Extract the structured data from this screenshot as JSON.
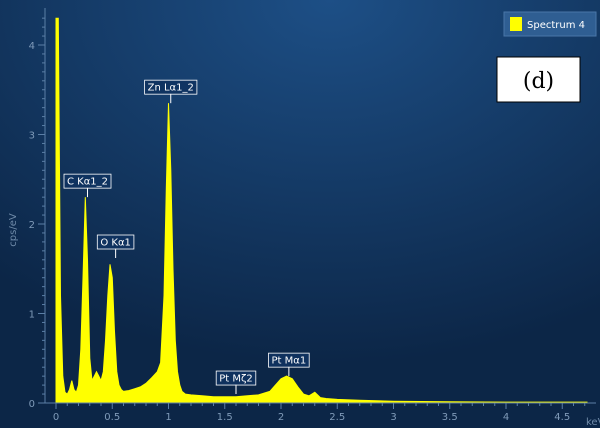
{
  "chart_data": {
    "type": "area",
    "title": "",
    "xlabel": "keV",
    "ylabel": "cps/eV",
    "xlim": [
      -0.1,
      4.75
    ],
    "ylim": [
      -0.05,
      4.3
    ],
    "x_ticks": [
      0,
      0.5,
      1,
      1.5,
      2,
      2.5,
      3,
      3.5,
      4,
      4.5
    ],
    "x_tick_labels": [
      "0",
      "0.5",
      "1",
      "1.5",
      "2",
      "2.5",
      "3",
      "3.5",
      "4",
      "4.5"
    ],
    "y_ticks": [
      0,
      1,
      2,
      3,
      4
    ],
    "y_tick_labels": [
      "0",
      "1",
      "2",
      "3",
      "4"
    ],
    "grid": false,
    "legend_position": "top-right",
    "panel_label": "(d)",
    "series": [
      {
        "name": "Spectrum 4",
        "color": "#ffff00",
        "x": [
          0.0,
          0.02,
          0.04,
          0.06,
          0.08,
          0.1,
          0.12,
          0.14,
          0.16,
          0.18,
          0.2,
          0.22,
          0.24,
          0.26,
          0.28,
          0.3,
          0.32,
          0.34,
          0.36,
          0.38,
          0.4,
          0.42,
          0.44,
          0.46,
          0.48,
          0.5,
          0.52,
          0.54,
          0.56,
          0.58,
          0.6,
          0.65,
          0.7,
          0.75,
          0.8,
          0.85,
          0.9,
          0.93,
          0.96,
          0.98,
          1.0,
          1.02,
          1.04,
          1.06,
          1.08,
          1.1,
          1.12,
          1.15,
          1.2,
          1.3,
          1.4,
          1.5,
          1.6,
          1.7,
          1.8,
          1.9,
          1.95,
          2.0,
          2.05,
          2.1,
          2.15,
          2.2,
          2.25,
          2.3,
          2.35,
          2.4,
          2.5,
          2.7,
          3.0,
          3.5,
          4.0,
          4.5,
          4.72
        ],
        "y": [
          4.3,
          4.3,
          1.2,
          0.3,
          0.12,
          0.1,
          0.15,
          0.25,
          0.15,
          0.12,
          0.2,
          0.6,
          1.4,
          2.3,
          1.6,
          0.5,
          0.25,
          0.3,
          0.35,
          0.3,
          0.25,
          0.35,
          0.7,
          1.2,
          1.55,
          1.4,
          0.8,
          0.35,
          0.2,
          0.15,
          0.13,
          0.14,
          0.16,
          0.18,
          0.22,
          0.28,
          0.35,
          0.45,
          1.2,
          2.4,
          3.35,
          2.6,
          1.5,
          0.7,
          0.35,
          0.2,
          0.13,
          0.1,
          0.09,
          0.08,
          0.07,
          0.07,
          0.07,
          0.08,
          0.09,
          0.13,
          0.2,
          0.27,
          0.3,
          0.27,
          0.18,
          0.1,
          0.08,
          0.12,
          0.06,
          0.05,
          0.04,
          0.03,
          0.02,
          0.015,
          0.01,
          0.01,
          0.01
        ]
      }
    ],
    "annotations": [
      {
        "text": "C Kα1_2",
        "x": 0.28,
        "y": 2.3
      },
      {
        "text": "O Kα1",
        "x": 0.53,
        "y": 1.62
      },
      {
        "text": "Zn Lα1_2",
        "x": 1.02,
        "y": 3.35
      },
      {
        "text": "Pt Mζ2",
        "x": 1.6,
        "y": 0.1
      },
      {
        "text": "Pt Mα1",
        "x": 2.07,
        "y": 0.3
      }
    ]
  }
}
